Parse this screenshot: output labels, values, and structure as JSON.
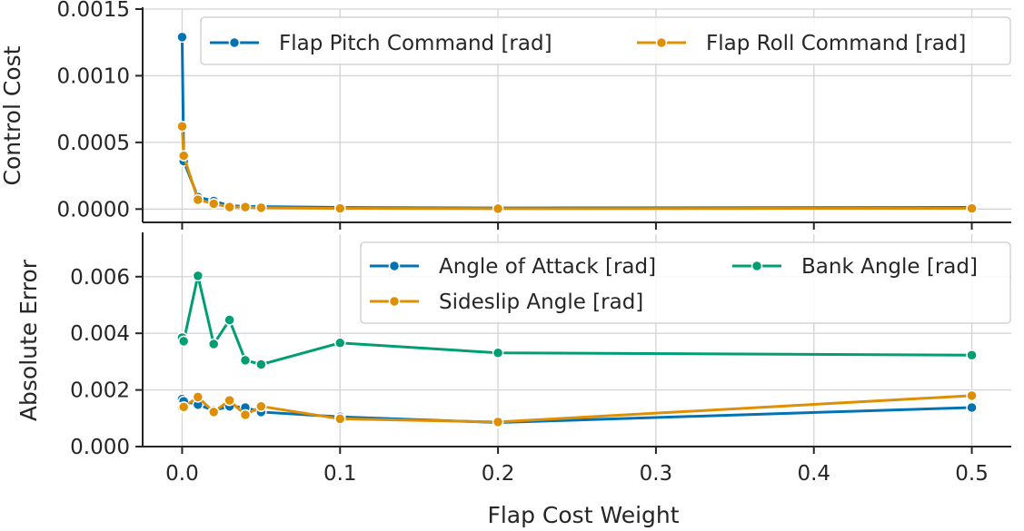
{
  "chart_data": [
    {
      "type": "line",
      "panel": "top",
      "ylabel": "Control Cost",
      "xlabel": "",
      "xlim": [
        -0.025,
        0.525
      ],
      "ylim": [
        -0.0001,
        0.0015
      ],
      "yticks": [
        0.0,
        0.0005,
        0.001,
        0.0015
      ],
      "ytick_labels": [
        "0.0000",
        "0.0005",
        "0.0010",
        "0.0015"
      ],
      "xticks": [
        0.0,
        0.1,
        0.2,
        0.3,
        0.4,
        0.5
      ],
      "grid": true,
      "legend_position": "top-right",
      "legend_columns": 2,
      "x": [
        0.0,
        0.001,
        0.01,
        0.02,
        0.03,
        0.04,
        0.05,
        0.1,
        0.2,
        0.5
      ],
      "series": [
        {
          "name": "Flap Pitch Command [rad]",
          "color": "#0173b2",
          "values": [
            0.00129,
            0.00036,
            9e-05,
            6e-05,
            2.5e-05,
            2e-05,
            1.8e-05,
            1.2e-05,
            8e-06,
            1.2e-05
          ]
        },
        {
          "name": "Flap Roll Command [rad]",
          "color": "#de8f05",
          "values": [
            0.00062,
            0.0004,
            7e-05,
            4e-05,
            1.5e-05,
            1.5e-05,
            1e-05,
            5e-06,
            3e-06,
            5e-06
          ]
        }
      ]
    },
    {
      "type": "line",
      "panel": "bottom",
      "ylabel": "Absolute Error",
      "xlabel": "Flap Cost Weight",
      "xlim": [
        -0.025,
        0.525
      ],
      "ylim": [
        0.0,
        0.0075
      ],
      "yticks": [
        0.0,
        0.002,
        0.004,
        0.006
      ],
      "ytick_labels": [
        "0.000",
        "0.002",
        "0.004",
        "0.006"
      ],
      "xticks": [
        0.0,
        0.1,
        0.2,
        0.3,
        0.4,
        0.5
      ],
      "xtick_labels": [
        "0.0",
        "0.1",
        "0.2",
        "0.3",
        "0.4",
        "0.5"
      ],
      "grid": true,
      "legend_position": "top-right",
      "legend_columns": 2,
      "x": [
        0.0,
        0.001,
        0.01,
        0.02,
        0.03,
        0.04,
        0.05,
        0.1,
        0.2,
        0.5
      ],
      "series": [
        {
          "name": "Angle of Attack [rad]",
          "color": "#0173b2",
          "values": [
            0.00168,
            0.0016,
            0.00148,
            0.00128,
            0.00142,
            0.00138,
            0.00122,
            0.00105,
            0.00085,
            0.00138
          ]
        },
        {
          "name": "Sideslip Angle [rad]",
          "color": "#de8f05",
          "values": [
            0.00138,
            0.0014,
            0.00175,
            0.00122,
            0.00163,
            0.00112,
            0.00142,
            0.00098,
            0.00087,
            0.0018
          ]
        },
        {
          "name": "Bank Angle [rad]",
          "color": "#029e73",
          "values": [
            0.00385,
            0.00372,
            0.00603,
            0.00362,
            0.00447,
            0.00305,
            0.0029,
            0.00366,
            0.00331,
            0.00323
          ]
        }
      ],
      "legend_order": [
        0,
        2,
        1
      ]
    }
  ]
}
